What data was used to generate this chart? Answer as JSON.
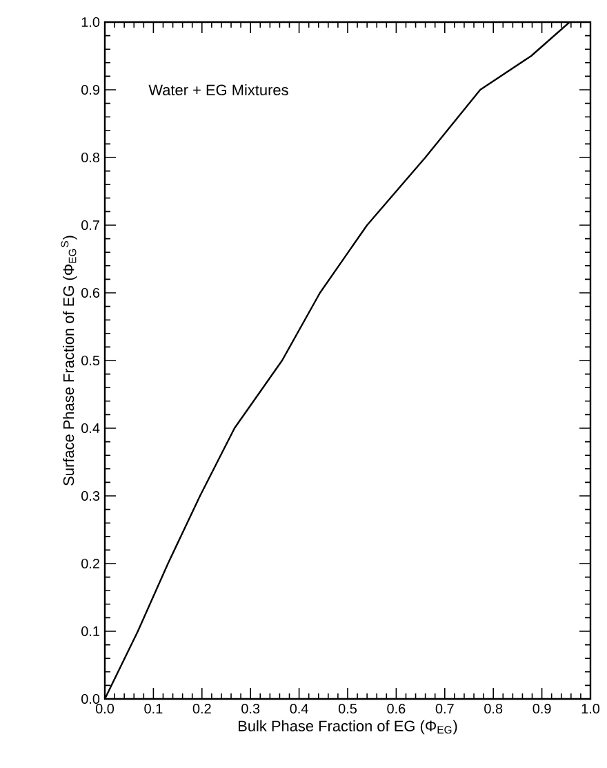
{
  "chart_data": {
    "type": "line",
    "xlabel": "Bulk Phase Fraction of EG (Φ$_{EG}$)",
    "ylabel": "Surface Phase Fraction of EG (Φ$_{EG}$$^{S}$)",
    "annotations": [
      "Water + EG Mixtures"
    ],
    "x": [
      0,
      0.068,
      0.13,
      0.196,
      0.267,
      0.365,
      0.443,
      0.54,
      0.66,
      0.773,
      0.878,
      0.957
    ],
    "values": [
      0,
      0.1,
      0.2,
      0.3,
      0.4,
      0.5,
      0.6,
      0.7,
      0.8,
      0.9,
      0.95,
      1.0
    ],
    "color": "#000000",
    "xlim": [
      0,
      1
    ],
    "ylim": [
      0,
      1
    ],
    "xticks": [
      "0.0",
      0.1,
      0.2,
      0.3,
      0.4,
      0.5,
      0.6,
      0.7,
      0.8,
      0.9,
      "1.0"
    ],
    "yticks": [
      "0.0",
      0.1,
      0.2,
      0.3,
      0.4,
      0.5,
      0.6,
      0.7,
      0.8,
      0.9,
      "1.0"
    ],
    "grid": false,
    "marker": "none",
    "line_style": "solid"
  }
}
